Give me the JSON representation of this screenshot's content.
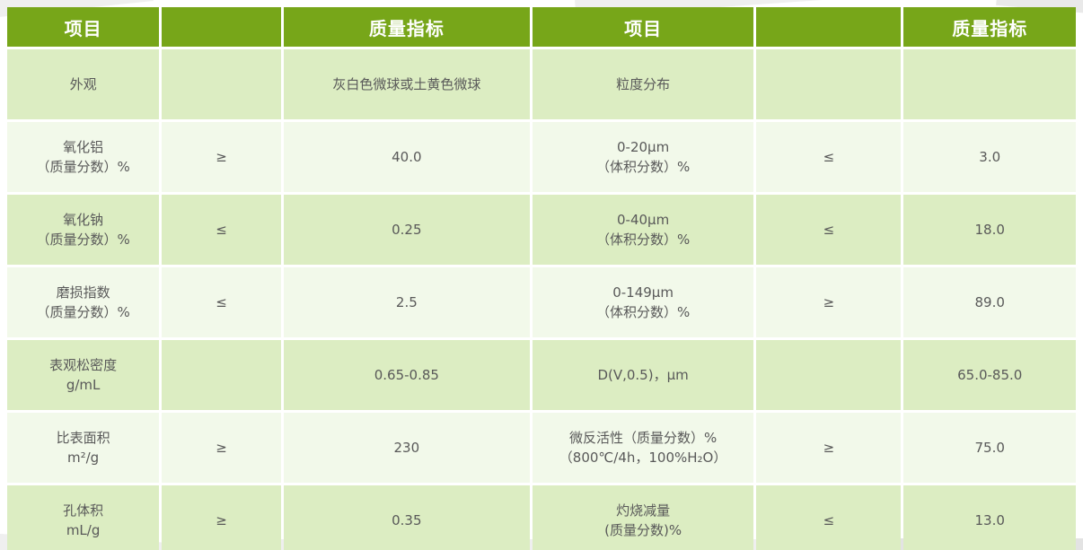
{
  "slide": {
    "decor_color_light": "#efefef",
    "decor_color_mid": "#e9e9e9",
    "decor_color_dark": "#e3e3e3"
  },
  "table": {
    "header_bg": "#77a619",
    "header_text_color": "#ffffff",
    "body_text_color": "#595959",
    "row_bg_odd": "#dcedc2",
    "row_bg_even": "#f2f9ea",
    "grid_color": "#ffffff",
    "headers": [
      {
        "label": "项目"
      },
      {
        "label": ""
      },
      {
        "label": "质量指标"
      },
      {
        "label": "项目"
      },
      {
        "label": ""
      },
      {
        "label": "质量指标"
      }
    ],
    "rows": [
      {
        "cells": [
          [
            "外观"
          ],
          [
            ""
          ],
          [
            "灰白色微球或土黄色微球"
          ],
          [
            "粒度分布"
          ],
          [
            ""
          ],
          [
            ""
          ]
        ]
      },
      {
        "cells": [
          [
            "氧化铝",
            "（质量分数）%"
          ],
          [
            "≥"
          ],
          [
            "40.0"
          ],
          [
            "0-20μm",
            "（体积分数）%"
          ],
          [
            "≤"
          ],
          [
            "3.0"
          ]
        ]
      },
      {
        "cells": [
          [
            "氧化钠",
            "（质量分数）%"
          ],
          [
            "≤"
          ],
          [
            "0.25"
          ],
          [
            "0-40μm",
            "（体积分数）%"
          ],
          [
            "≤"
          ],
          [
            "18.0"
          ]
        ]
      },
      {
        "cells": [
          [
            "磨损指数",
            "（质量分数）%"
          ],
          [
            "≤"
          ],
          [
            "2.5"
          ],
          [
            "0-149μm",
            "（体积分数）%"
          ],
          [
            "≥"
          ],
          [
            "89.0"
          ]
        ]
      },
      {
        "cells": [
          [
            "表观松密度",
            "g/mL"
          ],
          [
            ""
          ],
          [
            "0.65-0.85"
          ],
          [
            "D(V,0.5)，μm"
          ],
          [
            ""
          ],
          [
            "65.0-85.0"
          ]
        ]
      },
      {
        "cells": [
          [
            "比表面积",
            "m²/g"
          ],
          [
            "≥"
          ],
          [
            "230"
          ],
          [
            "微反活性（质量分数）%",
            "（800℃/4h，100%H₂O）"
          ],
          [
            "≥"
          ],
          [
            "75.0"
          ]
        ]
      },
      {
        "cells": [
          [
            "孔体积",
            "mL/g"
          ],
          [
            "≥"
          ],
          [
            "0.35"
          ],
          [
            "灼烧减量",
            "(质量分数)%"
          ],
          [
            "≤"
          ],
          [
            "13.0"
          ]
        ]
      }
    ]
  }
}
